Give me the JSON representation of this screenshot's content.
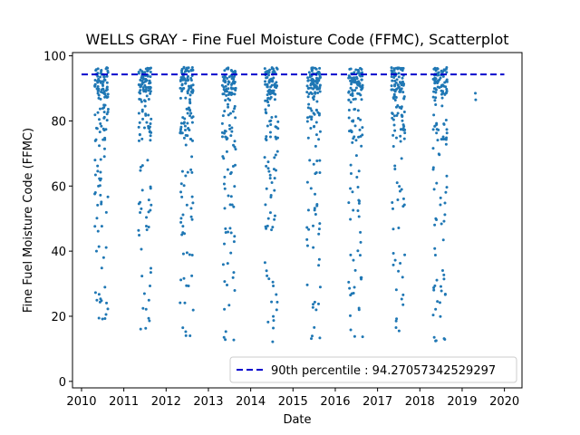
{
  "chart_data": {
    "type": "scatter",
    "title": "WELLS GRAY - Fine Fuel Moisture Code (FFMC), Scatterplot",
    "xlabel": "Date",
    "ylabel": "Fine Fuel Moisture Code (FFMC)",
    "xlim": [
      "2009-10-15",
      "2020-06-01"
    ],
    "ylim": [
      -2,
      101
    ],
    "x_ticks": [
      "2010",
      "2011",
      "2012",
      "2013",
      "2014",
      "2015",
      "2016",
      "2017",
      "2018",
      "2019",
      "2020"
    ],
    "y_ticks": [
      0,
      20,
      40,
      60,
      80,
      100
    ],
    "grid": false,
    "legend_position": "lower-right",
    "colors": {
      "points": "#1f77b4",
      "reference_line": "#0000cc"
    },
    "reference_line": {
      "label": "90th percentile : 94.27057342529297",
      "value": 94.27057342529297,
      "style": "dashed"
    },
    "series": [
      {
        "seasons": [
          {
            "start": "2010-04-25",
            "end": "2010-08-20",
            "n": 140
          },
          {
            "start": "2011-05-05",
            "end": "2011-08-25",
            "n": 130
          },
          {
            "start": "2012-05-01",
            "end": "2012-08-25",
            "n": 140
          },
          {
            "start": "2013-05-01",
            "end": "2013-08-25",
            "n": 135
          },
          {
            "start": "2014-05-01",
            "end": "2014-08-25",
            "n": 135
          },
          {
            "start": "2015-05-01",
            "end": "2015-08-25",
            "n": 140
          },
          {
            "start": "2016-04-25",
            "end": "2016-08-25",
            "n": 140
          },
          {
            "start": "2017-05-01",
            "end": "2017-08-25",
            "n": 135
          },
          {
            "start": "2018-04-25",
            "end": "2018-08-25",
            "n": 135
          }
        ],
        "points": [
          {
            "x": "2019-04-25",
            "y": 88.5
          },
          {
            "x": "2019-04-28",
            "y": 86.5
          }
        ]
      }
    ]
  }
}
